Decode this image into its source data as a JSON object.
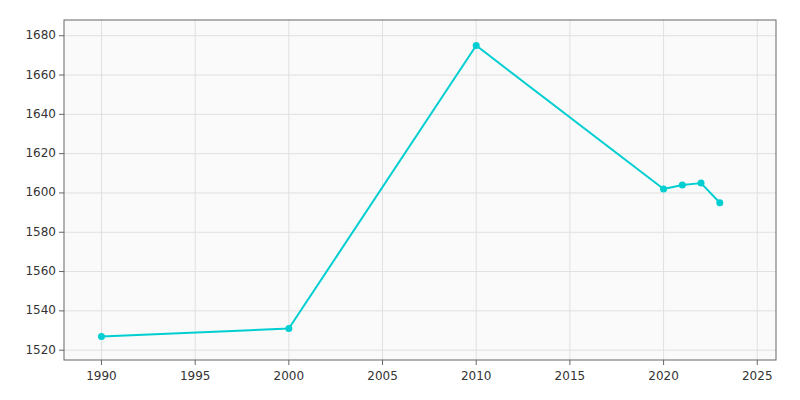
{
  "chart_data": {
    "type": "line",
    "x": [
      1990,
      2000,
      2010,
      2020,
      2021,
      2022,
      2023
    ],
    "values": [
      1527,
      1531,
      1675,
      1602,
      1604,
      1605,
      1595
    ],
    "color": "#00CED1",
    "marker": "circle",
    "xlim": [
      1988,
      2026
    ],
    "ylim": [
      1515,
      1688
    ],
    "xticks": [
      1990,
      1995,
      2000,
      2005,
      2010,
      2015,
      2020,
      2025
    ],
    "yticks": [
      1520,
      1540,
      1560,
      1580,
      1600,
      1620,
      1640,
      1660,
      1680
    ],
    "grid": true
  }
}
